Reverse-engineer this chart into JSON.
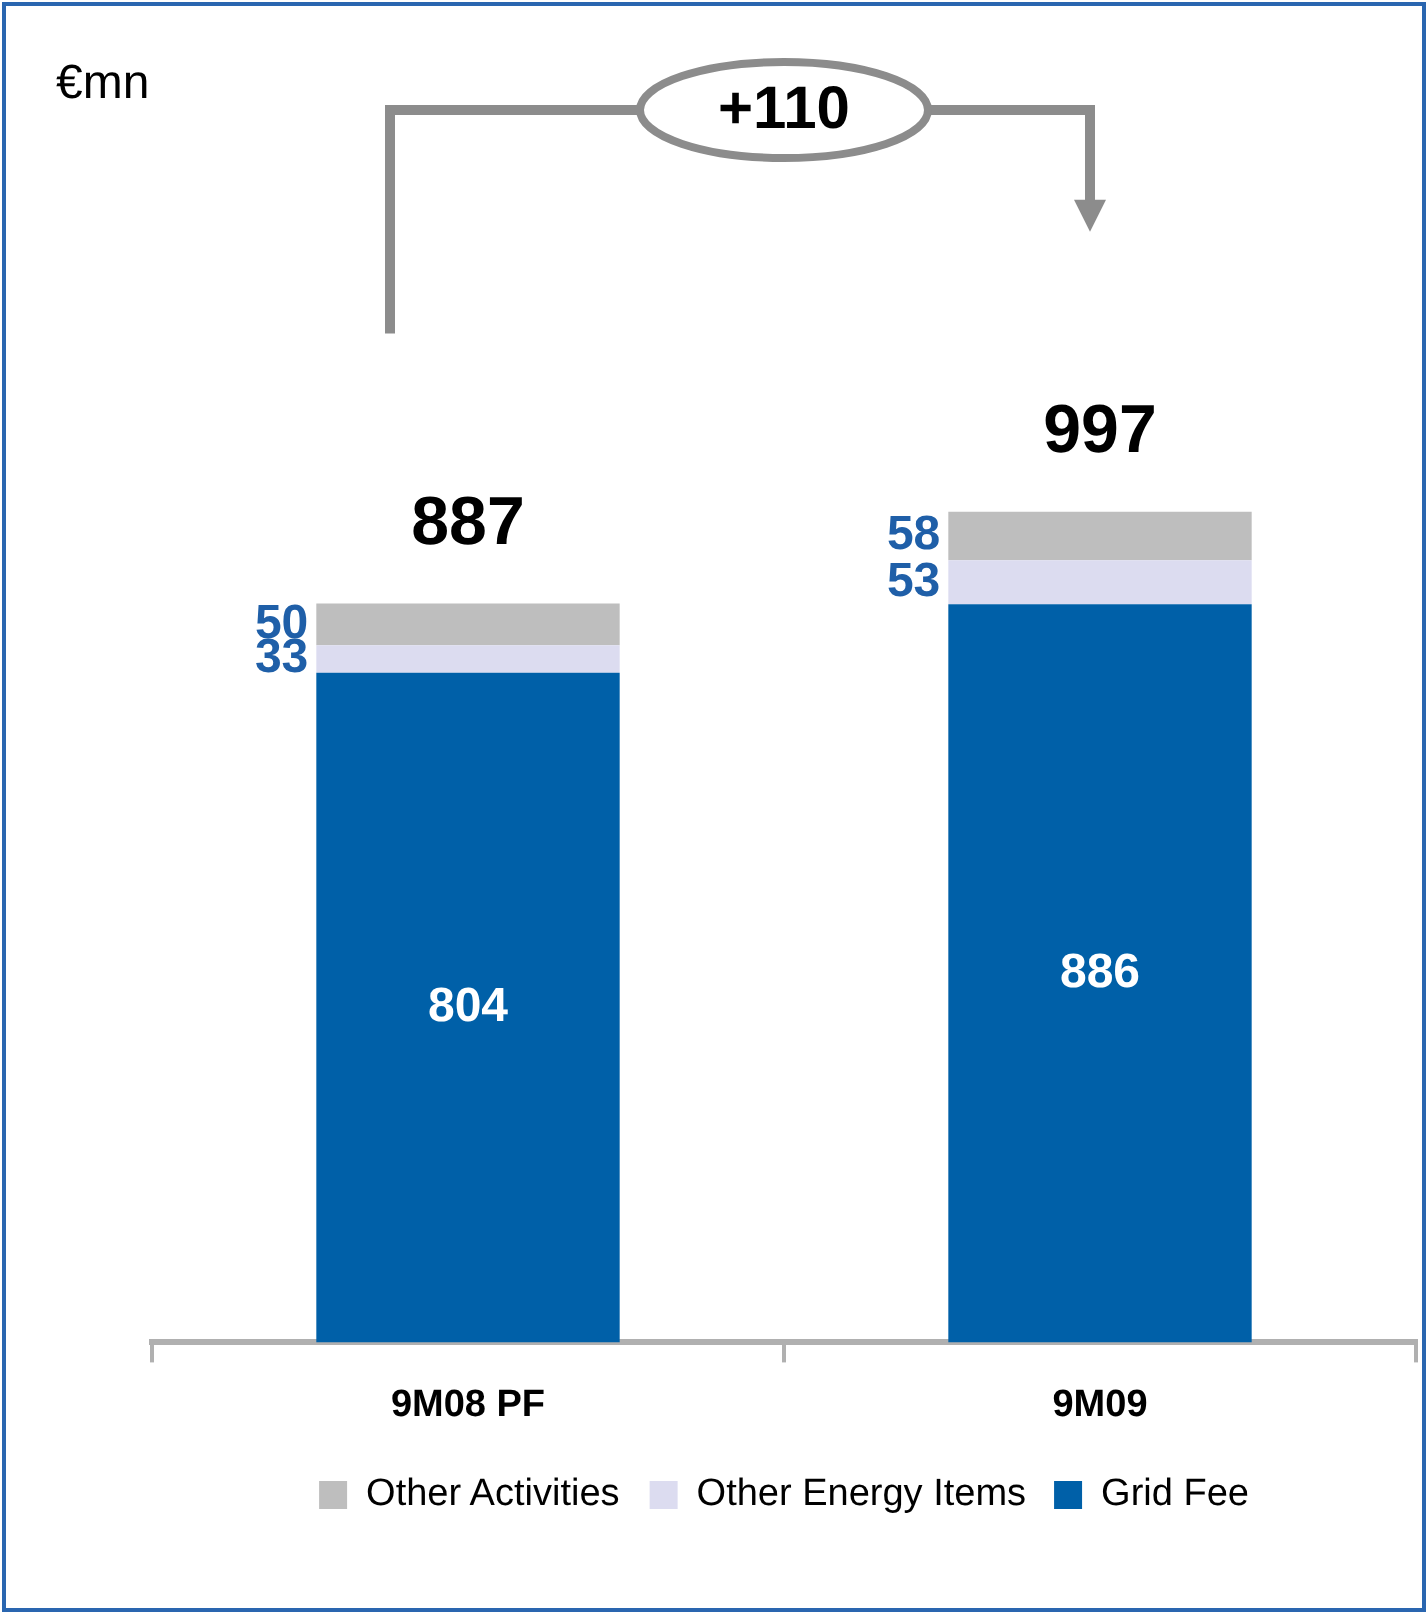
{
  "chart_data": {
    "type": "bar",
    "stacked": true,
    "categories": [
      "9M08 PF",
      "9M09"
    ],
    "series": [
      {
        "name": "Grid Fee",
        "color": "#0060a8",
        "values": [
          804,
          886
        ]
      },
      {
        "name": "Other Energy Items",
        "color": "#dcdcf0",
        "values": [
          33,
          53
        ]
      },
      {
        "name": "Other Activities",
        "color": "#bebebe",
        "values": [
          50,
          58
        ]
      }
    ],
    "totals": [
      "887",
      "997"
    ],
    "data_labels": true,
    "legend": "bottom",
    "grid": false,
    "annotations": [
      "€mn",
      "+110"
    ]
  }
}
